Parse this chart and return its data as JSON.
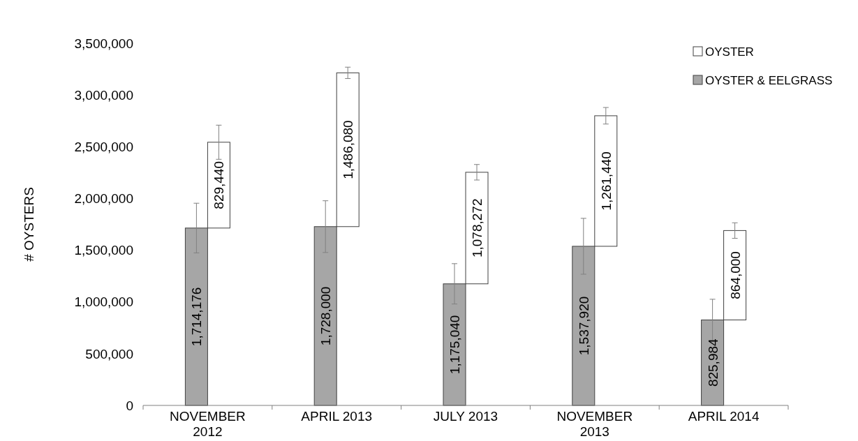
{
  "chart_data": {
    "type": "bar",
    "stacked": true,
    "ylabel": "# OYSTERS",
    "categories": [
      "NOVEMBER 2012",
      "APRIL 2013",
      "JULY 2013",
      "NOVEMBER 2013",
      "APRIL 2014"
    ],
    "series": [
      {
        "name": "OYSTER & EELGRASS",
        "color": "#a6a6a6",
        "values": [
          1714176,
          1728000,
          1175040,
          1537920,
          825984
        ],
        "errors": [
          240000,
          250000,
          195000,
          270000,
          200000
        ],
        "value_labels": [
          "1,714,176",
          "1,728,000",
          "1,175,040",
          "1,537,920",
          "825,984"
        ]
      },
      {
        "name": "OYSTER",
        "color": "#ffffff",
        "values": [
          829440,
          1486080,
          1078272,
          1261440,
          864000
        ],
        "errors": [
          165000,
          55000,
          75000,
          80000,
          75000
        ],
        "value_labels": [
          "829,440",
          "1,486,080",
          "1,078,272",
          "1,261,440",
          "864,000"
        ]
      }
    ],
    "ylim": [
      0,
      3500000
    ],
    "yticks": [
      {
        "value": 0,
        "label": "0"
      },
      {
        "value": 500000,
        "label": "500,000"
      },
      {
        "value": 1000000,
        "label": "1,000,000"
      },
      {
        "value": 1500000,
        "label": "1,500,000"
      },
      {
        "value": 2000000,
        "label": "2,000,000"
      },
      {
        "value": 2500000,
        "label": "2,500,000"
      },
      {
        "value": 3000000,
        "label": "3,000,000"
      },
      {
        "value": 3500000,
        "label": "3,500,000"
      }
    ],
    "legend": "top right",
    "grid": false
  }
}
